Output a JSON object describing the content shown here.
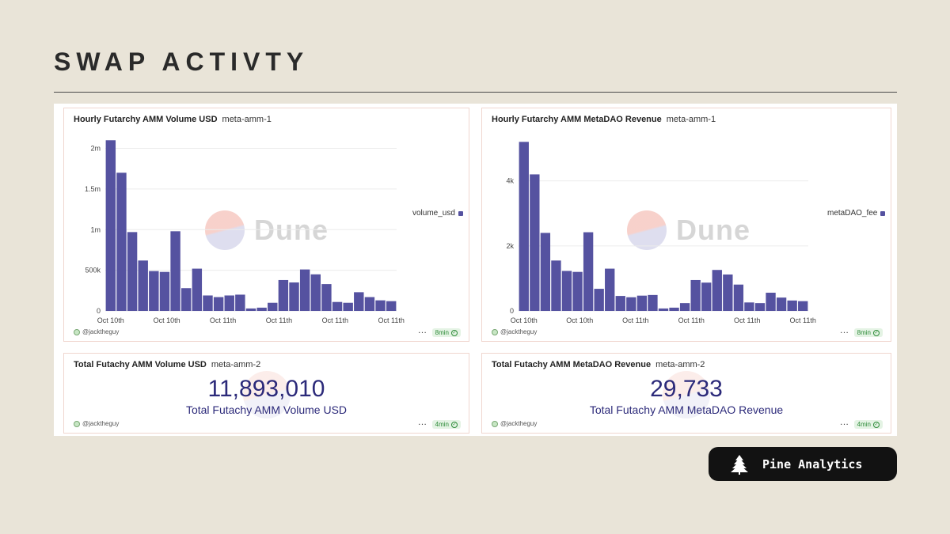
{
  "page": {
    "title": "SWAP ACTIVTY"
  },
  "charts": [
    {
      "title": "Hourly Futarchy AMM Volume USD",
      "subtitle": "meta-amm-1",
      "user": "@jacktheguy",
      "age": "8min",
      "watermark": "Dune",
      "legend": "volume_usd",
      "color": "#5552a0"
    },
    {
      "title": "Hourly Futarchy AMM MetaDAO Revenue",
      "subtitle": "meta-amm-1",
      "user": "@jacktheguy",
      "age": "8min",
      "watermark": "Dune",
      "legend": "metaDAO_fee",
      "color": "#5552a0"
    }
  ],
  "counters": [
    {
      "title": "Total Futachy AMM Volume USD",
      "subtitle": "meta-amm-2",
      "value": "11,893,010",
      "label": "Total Futachy AMM Volume USD",
      "user": "@jacktheguy",
      "age": "4min"
    },
    {
      "title": "Total Futachy AMM MetaDAO Revenue",
      "subtitle": "meta-amm-2",
      "value": "29,733",
      "label": "Total Futachy AMM MetaDAO Revenue",
      "user": "@jacktheguy",
      "age": "4min"
    }
  ],
  "chart_data": [
    {
      "type": "bar",
      "title": "Hourly Futarchy AMM Volume USD",
      "xlabel": "",
      "ylabel": "",
      "series": [
        {
          "name": "volume_usd",
          "values": [
            2100000,
            1700000,
            970000,
            620000,
            490000,
            480000,
            980000,
            280000,
            520000,
            190000,
            170000,
            190000,
            200000,
            30000,
            40000,
            100000,
            380000,
            350000,
            510000,
            450000,
            330000,
            110000,
            100000,
            230000,
            170000,
            130000,
            120000
          ]
        }
      ],
      "ylim": [
        0,
        2200000
      ],
      "yticks": [
        0,
        500000,
        1000000,
        1500000,
        2000000
      ],
      "ytick_labels": [
        "0",
        "500k",
        "1m",
        "1.5m",
        "2m"
      ],
      "xtick_labels": [
        "Oct 10th",
        "Oct 10th",
        "Oct 11th",
        "Oct 11th",
        "Oct 11th",
        "Oct 11th"
      ],
      "legend": "right"
    },
    {
      "type": "bar",
      "title": "Hourly Futarchy AMM MetaDAO Revenue",
      "xlabel": "",
      "ylabel": "",
      "series": [
        {
          "name": "metaDAO_fee",
          "values": [
            5200,
            4200,
            2400,
            1550,
            1230,
            1200,
            2420,
            680,
            1300,
            460,
            420,
            470,
            490,
            75,
            100,
            240,
            950,
            870,
            1260,
            1120,
            810,
            260,
            240,
            560,
            410,
            320,
            300
          ]
        }
      ],
      "ylim": [
        0,
        5500
      ],
      "yticks": [
        0,
        2000,
        4000
      ],
      "ytick_labels": [
        "0",
        "2k",
        "4k"
      ],
      "xtick_labels": [
        "Oct 10th",
        "Oct 10th",
        "Oct 11th",
        "Oct 11th",
        "Oct 11th",
        "Oct 11th"
      ],
      "legend": "right"
    }
  ],
  "brand": {
    "name": "Pine Analytics"
  }
}
